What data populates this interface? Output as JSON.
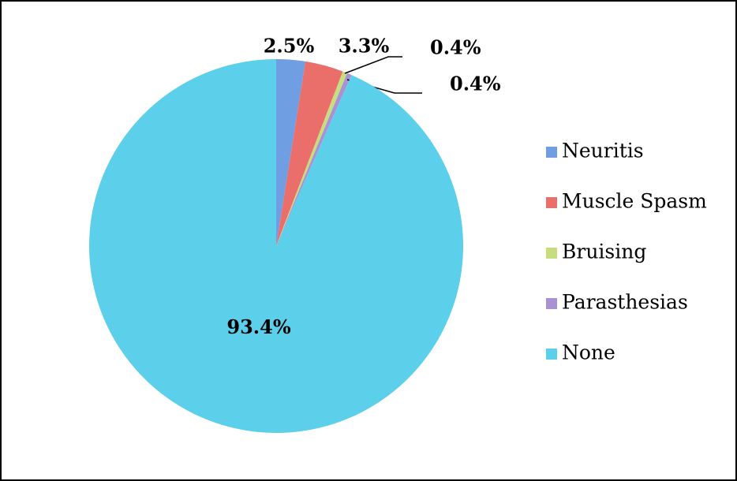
{
  "chart_data": {
    "type": "pie",
    "categories": [
      "Neuritis",
      "Muscle Spasm",
      "Bruising",
      "Parasthesias",
      "None"
    ],
    "values": [
      2.5,
      3.3,
      0.4,
      0.4,
      93.4
    ],
    "value_labels": [
      "2.5%",
      "3.3%",
      "0.4%",
      "0.4%",
      "93.4%"
    ],
    "colors": [
      "#6f9fe2",
      "#ea6f6b",
      "#c6de7e",
      "#a892d4",
      "#5ccfea"
    ],
    "legend": "right"
  }
}
